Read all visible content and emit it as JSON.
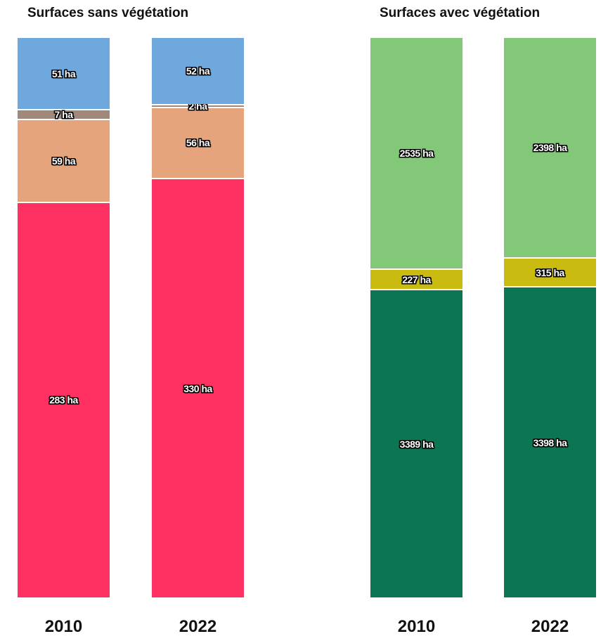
{
  "chart_data": [
    {
      "type": "bar",
      "stacked": true,
      "title": "Surfaces sans végétation",
      "categories": [
        "2010",
        "2022"
      ],
      "unit": "ha",
      "series": [
        {
          "values": [
            283,
            330
          ],
          "color": "#fe3162"
        },
        {
          "values": [
            59,
            56
          ],
          "color": "#e6a47c"
        },
        {
          "values": [
            7,
            2
          ],
          "color": "#a0897b"
        },
        {
          "values": [
            51,
            52
          ],
          "color": "#6fa8dc"
        }
      ]
    },
    {
      "type": "bar",
      "stacked": true,
      "title": "Surfaces avec végétation",
      "categories": [
        "2010",
        "2022"
      ],
      "unit": "ha",
      "series": [
        {
          "values": [
            3389,
            3398
          ],
          "color": "#0c7553"
        },
        {
          "values": [
            227,
            315
          ],
          "color": "#c9bb10"
        },
        {
          "values": [
            2535,
            2398
          ],
          "color": "#83c878"
        }
      ]
    }
  ]
}
